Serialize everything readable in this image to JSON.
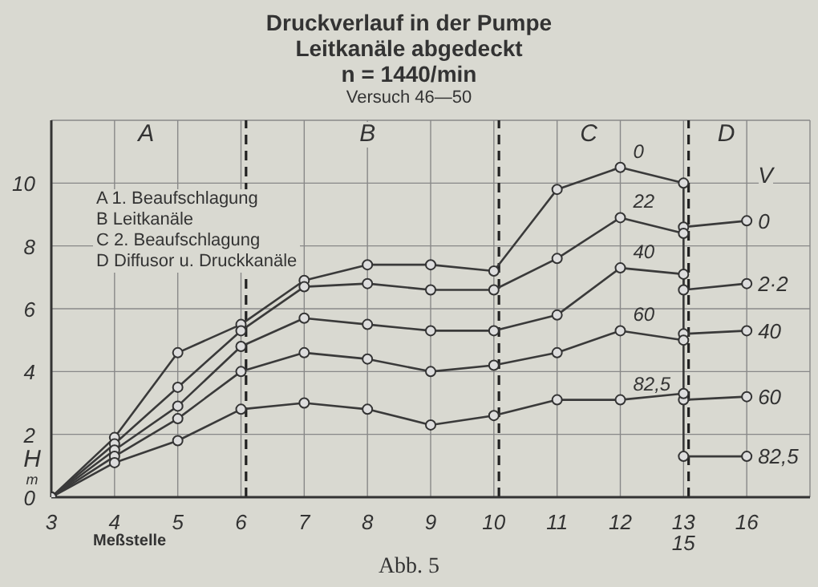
{
  "chart_data": {
    "type": "line",
    "title": "Druckverlauf in der Pumpe",
    "subtitle": "Leitkanäle abgedeckt",
    "xlabel": "Meßstelle",
    "ylabel": "H m",
    "categories": [
      "3",
      "4",
      "5",
      "6",
      "7",
      "8",
      "9",
      "10",
      "11",
      "12",
      "13\n15",
      "16"
    ],
    "series": [
      {
        "name": "0",
        "color": "#3a3a3a",
        "x": [
          "3",
          "4",
          "5",
          "6",
          "7",
          "8",
          "9",
          "10",
          "11",
          "12",
          "13\n15",
          "13\n15",
          "16"
        ],
        "values": [
          0,
          1.9,
          4.6,
          5.5,
          6.9,
          7.4,
          7.4,
          7.2,
          9.8,
          10.5,
          10.0,
          8.6,
          8.8
        ]
      },
      {
        "name": "22",
        "color": "#3a3a3a",
        "x": [
          "3",
          "4",
          "5",
          "6",
          "7",
          "8",
          "9",
          "10",
          "11",
          "12",
          "13\n15",
          "13\n15",
          "16"
        ],
        "values": [
          0,
          1.7,
          3.5,
          5.3,
          6.7,
          6.8,
          6.6,
          6.6,
          7.6,
          8.9,
          8.4,
          6.6,
          6.8
        ]
      },
      {
        "name": "40",
        "color": "#3a3a3a",
        "x": [
          "3",
          "4",
          "5",
          "6",
          "7",
          "8",
          "9",
          "10",
          "11",
          "12",
          "13\n15",
          "13\n15",
          "16"
        ],
        "values": [
          0,
          1.5,
          2.9,
          4.8,
          5.7,
          5.5,
          5.3,
          5.3,
          5.8,
          7.3,
          7.1,
          5.2,
          5.3
        ]
      },
      {
        "name": "60",
        "color": "#3a3a3a",
        "x": [
          "3",
          "4",
          "5",
          "6",
          "7",
          "8",
          "9",
          "10",
          "11",
          "12",
          "13\n15",
          "13\n15",
          "16"
        ],
        "values": [
          0,
          1.3,
          2.5,
          4.0,
          4.6,
          4.4,
          4.0,
          4.2,
          4.6,
          5.3,
          5.0,
          3.1,
          3.2
        ]
      },
      {
        "name": "82,5",
        "color": "#3a3a3a",
        "x": [
          "3",
          "4",
          "5",
          "6",
          "7",
          "8",
          "9",
          "10",
          "11",
          "12",
          "13\n15",
          "13\n15",
          "16"
        ],
        "values": [
          0,
          1.1,
          1.8,
          2.8,
          3.0,
          2.8,
          2.3,
          2.6,
          3.1,
          3.1,
          3.3,
          1.3,
          1.3
        ]
      }
    ],
    "ylim": [
      0,
      12
    ],
    "yticks": [
      0,
      2,
      4,
      6,
      8,
      10
    ],
    "grid": true,
    "marker": "circle",
    "line_style": "solid",
    "legend": false,
    "ref_lines": [
      {
        "axis": "x",
        "value": "6",
        "line_style": "dashed",
        "color": "#222222"
      },
      {
        "axis": "x",
        "value": "10",
        "line_style": "dashed",
        "color": "#222222"
      },
      {
        "axis": "x",
        "value": "13\n15",
        "line_style": "dashed",
        "color": "#222222"
      }
    ],
    "annotations": [
      "A",
      "B",
      "C",
      "D",
      "A 1. Beaufschlagung",
      "B Leitkanäle",
      "C 2. Beaufschlagung",
      "D Diffusor u. Druckkanäle",
      "n = 1440/min",
      "Versuch 46—50",
      "Abb. 5",
      "V",
      "0",
      "2·2",
      "40",
      "60",
      "82,5"
    ]
  }
}
